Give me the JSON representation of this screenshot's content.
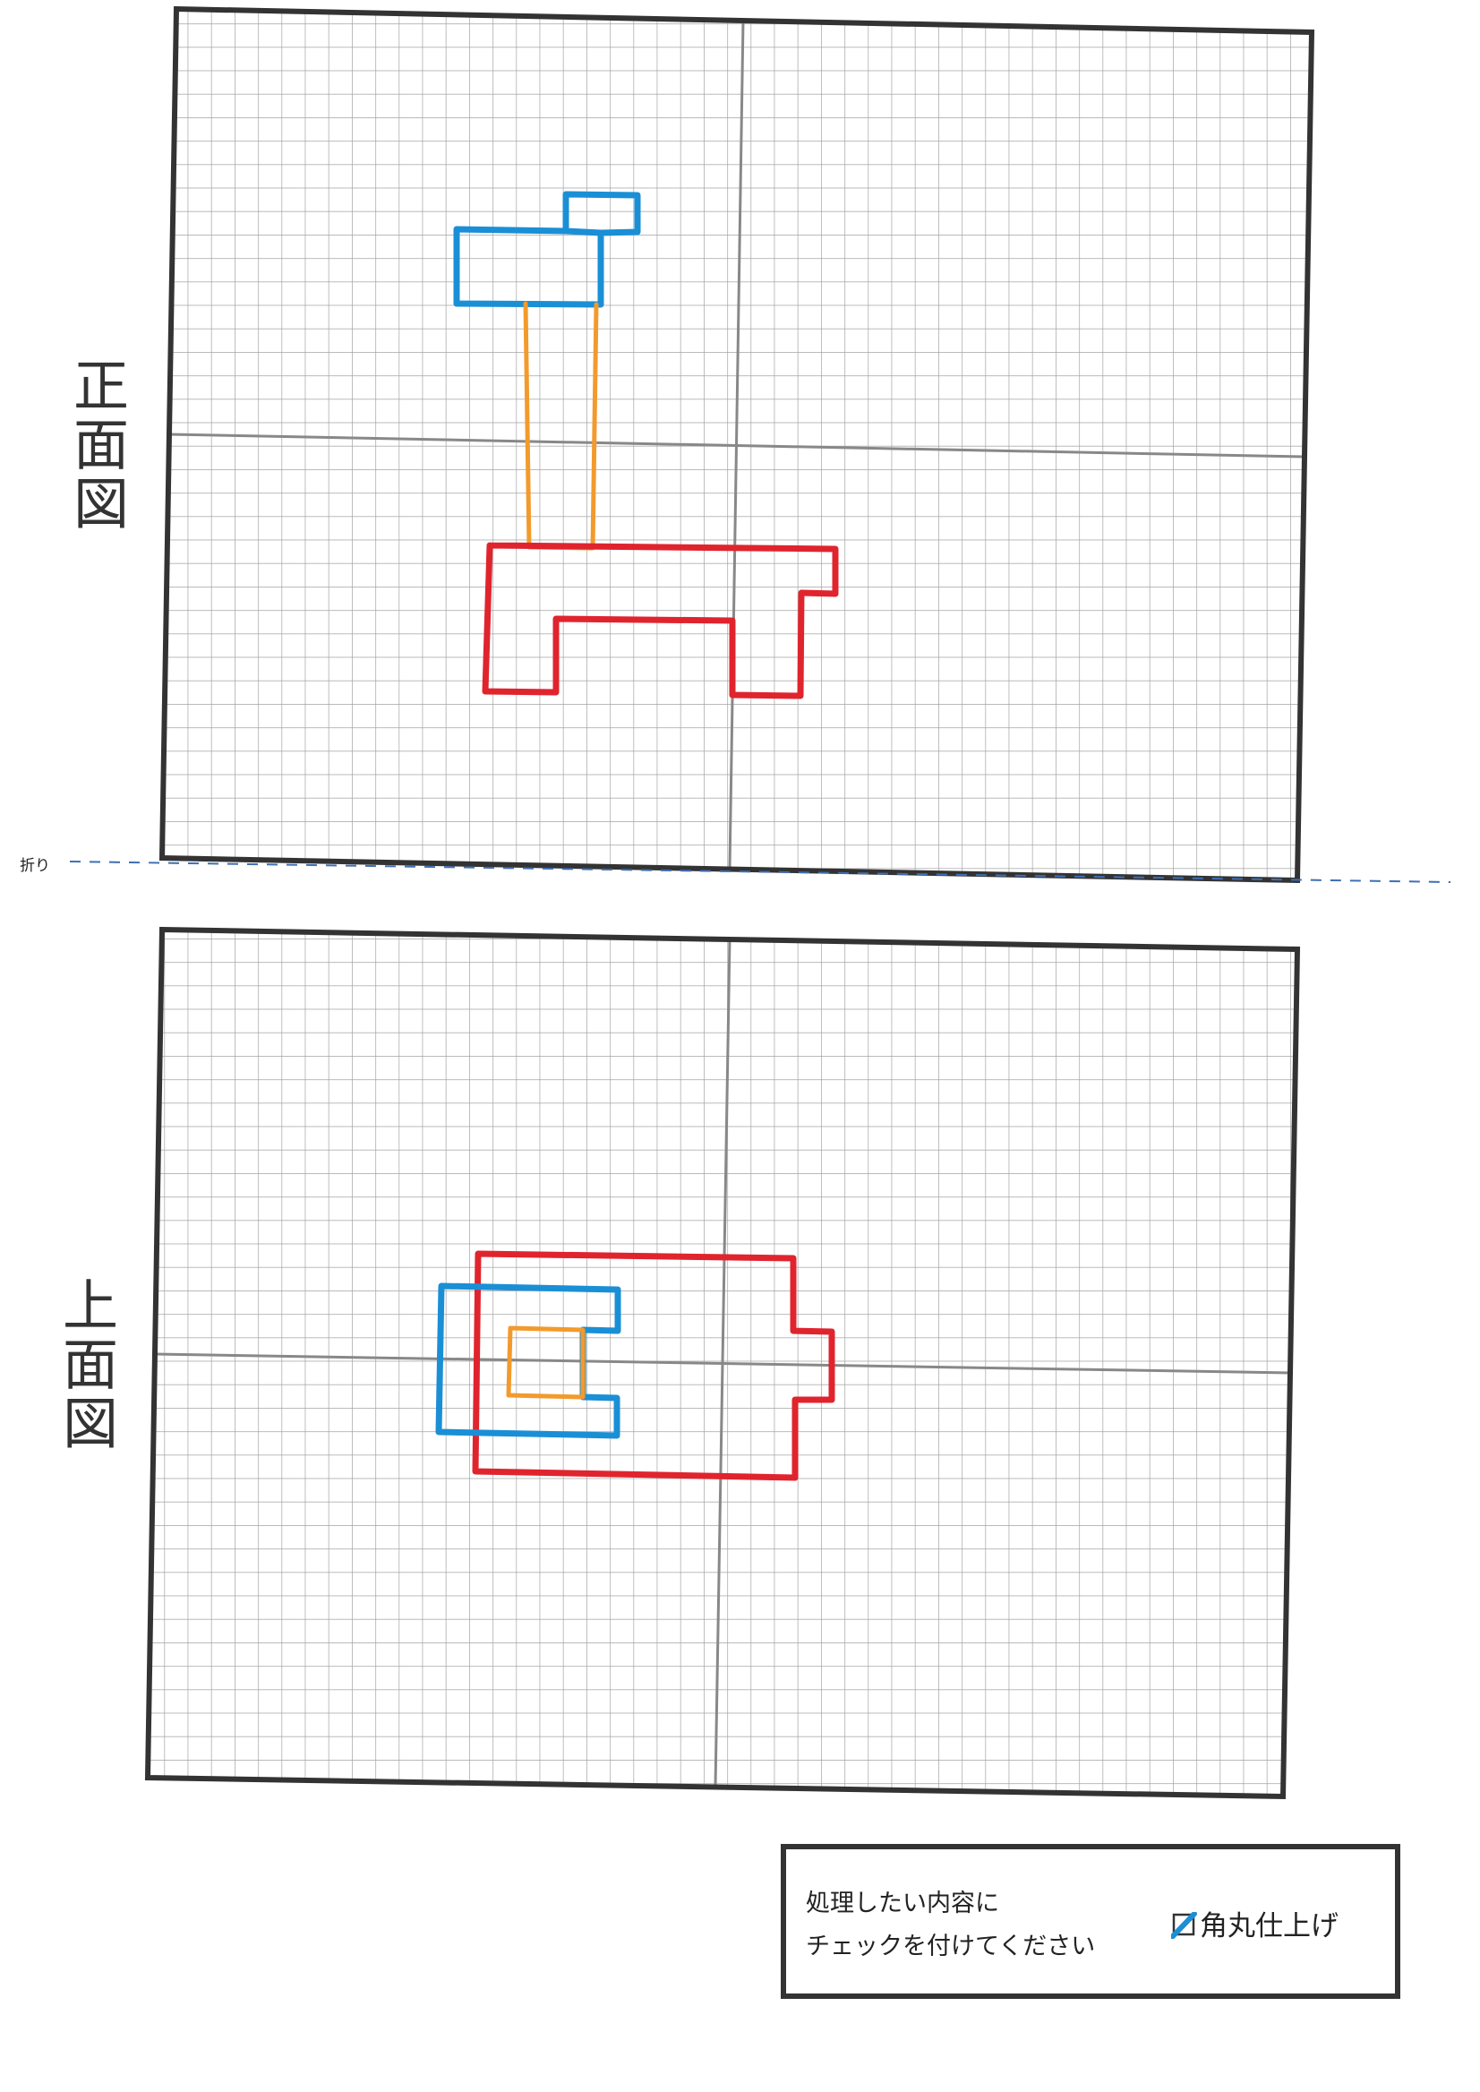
{
  "views": {
    "front": {
      "label": "正面図"
    },
    "top": {
      "label": "上面図"
    }
  },
  "fold": {
    "label": "折り"
  },
  "options": {
    "instruction_line1": "処理したい内容に",
    "instruction_line2": "チェックを付けてください",
    "items": [
      {
        "label": "角丸仕上げ",
        "checked": true
      }
    ]
  },
  "colors": {
    "red": "#e0242e",
    "blue": "#1a8fd6",
    "orange": "#f39a2c",
    "grid": "#9a9a9a",
    "border": "#333333"
  }
}
